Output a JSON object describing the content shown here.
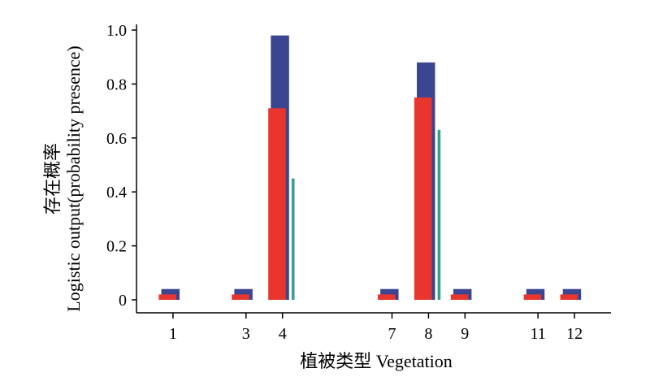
{
  "chart_data": {
    "type": "bar",
    "xlabel": "植被类型 Vegetation",
    "ylabel_line1": "存在概率",
    "ylabel_line2": "Logistic output(probability presence)",
    "ylim": [
      0,
      1.0
    ],
    "y_ticks": [
      0,
      0.2,
      0.4,
      0.6,
      0.8,
      1.0
    ],
    "y_tick_labels": [
      "0",
      "0.2",
      "0.4",
      "0.6",
      "0.8",
      "1.0"
    ],
    "x_domain": [
      0,
      13
    ],
    "categories": [
      "1",
      "3",
      "4",
      "7",
      "8",
      "9",
      "11",
      "12"
    ],
    "x": [
      1,
      3,
      4,
      7,
      8,
      9,
      11,
      12
    ],
    "legend": "none",
    "grid": false,
    "series": [
      {
        "color": "#3b4691",
        "values": [
          0.04,
          0.04,
          0.98,
          0.04,
          0.88,
          0.04,
          0.04,
          0.04
        ]
      },
      {
        "color": "#e8362f",
        "values": [
          0.02,
          0.02,
          0.71,
          0.02,
          0.75,
          0.02,
          0.02,
          0.02
        ]
      },
      {
        "color": "#3a9e8f",
        "values": [
          0,
          0,
          0.45,
          0,
          0.63,
          0,
          0,
          0
        ]
      }
    ]
  }
}
